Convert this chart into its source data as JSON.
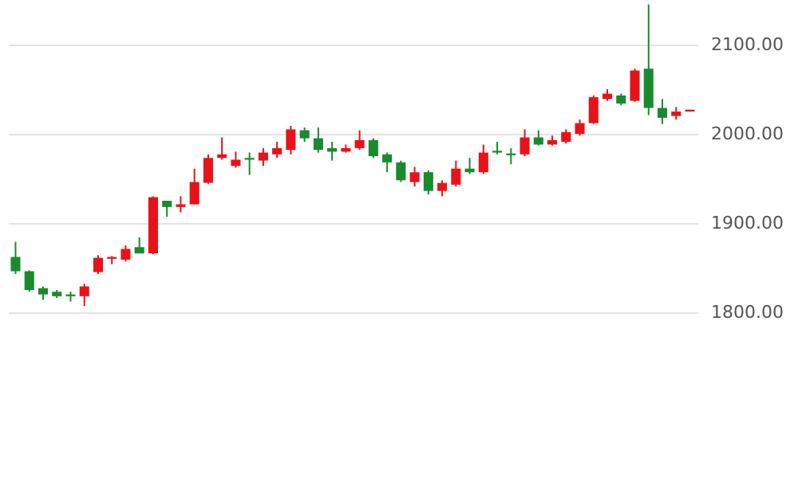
{
  "chart_data": {
    "type": "candlestick",
    "categories": [
      null,
      null,
      null,
      null,
      null,
      null,
      null,
      null,
      null,
      null,
      null,
      null,
      null,
      null,
      null,
      null,
      null,
      null,
      null,
      null,
      null,
      null,
      null,
      null,
      null,
      null,
      null,
      null,
      null,
      null,
      null,
      null,
      null,
      null,
      null,
      null,
      null,
      null,
      null,
      null,
      null,
      null,
      null,
      null,
      null,
      null,
      null,
      null,
      null,
      null
    ],
    "ohlc": [
      [
        1862,
        1879,
        1843,
        1846
      ],
      [
        1846,
        1847,
        1823,
        1825
      ],
      [
        1827,
        1829,
        1814,
        1820
      ],
      [
        1823,
        1825,
        1816,
        1818
      ],
      [
        1820,
        1823,
        1812,
        1818
      ],
      [
        1818,
        1832,
        1807,
        1829
      ],
      [
        1845,
        1864,
        1843,
        1861
      ],
      [
        1860,
        1863,
        1854,
        1862
      ],
      [
        1859,
        1875,
        1857,
        1871
      ],
      [
        1873,
        1884,
        1866,
        1866
      ],
      [
        1866,
        1930,
        1865,
        1929
      ],
      [
        1925,
        1925,
        1907,
        1918
      ],
      [
        1918,
        1930,
        1912,
        1921
      ],
      [
        1921,
        1961,
        1921,
        1946
      ],
      [
        1945,
        1977,
        1944,
        1973
      ],
      [
        1973,
        1996,
        1971,
        1977
      ],
      [
        1964,
        1980,
        1962,
        1971
      ],
      [
        1973,
        1979,
        1954,
        1971
      ],
      [
        1970,
        1984,
        1964,
        1979
      ],
      [
        1977,
        1991,
        1973,
        1984
      ],
      [
        1982,
        2009,
        1977,
        2005
      ],
      [
        2004,
        2007,
        1991,
        1995
      ],
      [
        1995,
        2007,
        1979,
        1982
      ],
      [
        1984,
        1991,
        1970,
        1980
      ],
      [
        1980,
        1988,
        1979,
        1984
      ],
      [
        1984,
        2004,
        1982,
        1993
      ],
      [
        1993,
        1995,
        1973,
        1975
      ],
      [
        1977,
        1979,
        1957,
        1968
      ],
      [
        1968,
        1970,
        1946,
        1948
      ],
      [
        1946,
        1963,
        1941,
        1957
      ],
      [
        1957,
        1959,
        1932,
        1936
      ],
      [
        1936,
        1948,
        1930,
        1945
      ],
      [
        1943,
        1970,
        1941,
        1961
      ],
      [
        1961,
        1973,
        1955,
        1957
      ],
      [
        1957,
        1988,
        1955,
        1979
      ],
      [
        1981,
        1991,
        1977,
        1979
      ],
      [
        1978,
        1984,
        1966,
        1976
      ],
      [
        1977,
        2005,
        1975,
        1996
      ],
      [
        1996,
        2004,
        1987,
        1988
      ],
      [
        1988,
        1998,
        1987,
        1993
      ],
      [
        1991,
        2005,
        1989,
        2002
      ],
      [
        2000,
        2016,
        1998,
        2012
      ],
      [
        2012,
        2043,
        2011,
        2041
      ],
      [
        2039,
        2050,
        2037,
        2045
      ],
      [
        2043,
        2045,
        2032,
        2034
      ],
      [
        2037,
        2073,
        2036,
        2071
      ],
      [
        2073,
        2145,
        2021,
        2029
      ],
      [
        2029,
        2039,
        2011,
        2018
      ],
      [
        2020,
        2030,
        2016,
        2025
      ],
      [
        2025,
        2027,
        2025,
        2027
      ]
    ],
    "colors": [
      "#1a8a2e",
      "#1a8a2e",
      "#1a8a2e",
      "#1a8a2e",
      "#1a8a2e",
      "#e8131a",
      "#e8131a",
      "#e8131a",
      "#e8131a",
      "#1a8a2e",
      "#e8131a",
      "#1a8a2e",
      "#e8131a",
      "#e8131a",
      "#e8131a",
      "#e8131a",
      "#e8131a",
      "#1a8a2e",
      "#e8131a",
      "#e8131a",
      "#e8131a",
      "#1a8a2e",
      "#1a8a2e",
      "#1a8a2e",
      "#e8131a",
      "#e8131a",
      "#1a8a2e",
      "#1a8a2e",
      "#1a8a2e",
      "#e8131a",
      "#1a8a2e",
      "#e8131a",
      "#e8131a",
      "#1a8a2e",
      "#e8131a",
      "#1a8a2e",
      "#1a8a2e",
      "#e8131a",
      "#1a8a2e",
      "#e8131a",
      "#e8131a",
      "#e8131a",
      "#e8131a",
      "#e8131a",
      "#1a8a2e",
      "#e8131a",
      "#1a8a2e",
      "#1a8a2e",
      "#e8131a",
      "#e8131a"
    ],
    "ylim": [
      1800,
      2150
    ],
    "yticks": [
      {
        "value": 1800,
        "label": "1800.00"
      },
      {
        "value": 1900,
        "label": "1900.00"
      },
      {
        "value": 2000,
        "label": "2000.00"
      },
      {
        "value": 2100,
        "label": "2100.00"
      }
    ],
    "grid": "y",
    "tick_labels": "y"
  }
}
